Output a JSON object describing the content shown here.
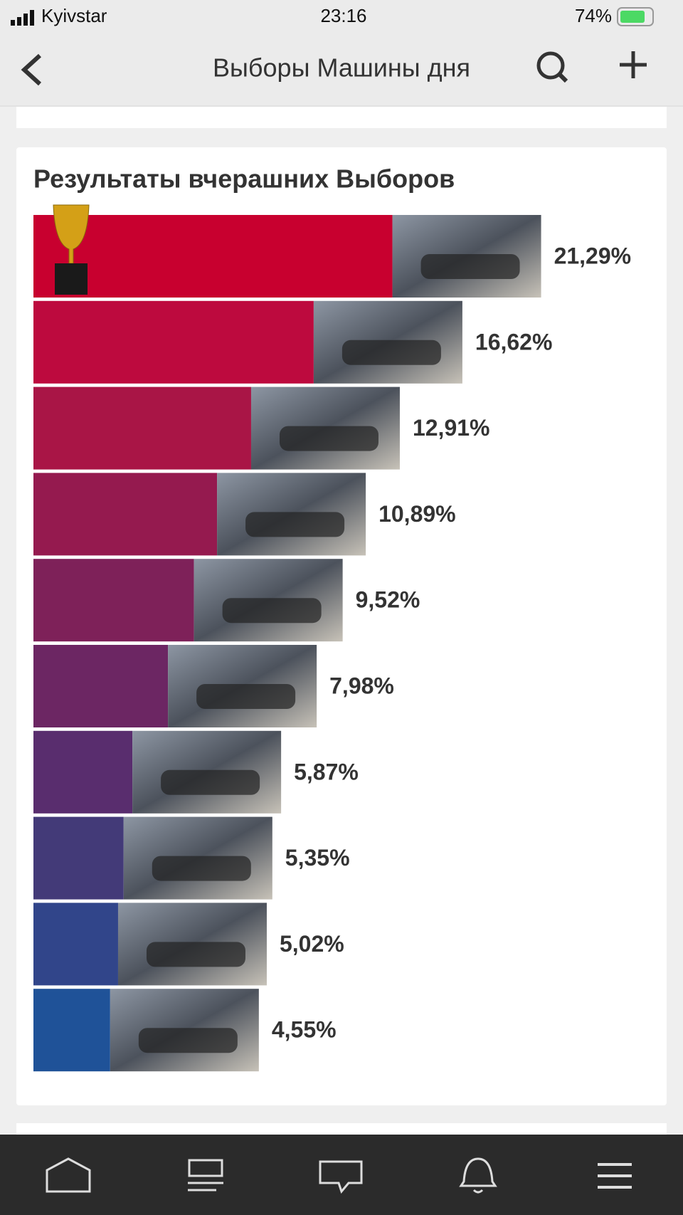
{
  "status_bar": {
    "carrier": "Kyivstar",
    "time": "23:16",
    "battery": "74%"
  },
  "nav": {
    "title": "Выборы Машины дня"
  },
  "chart_data": {
    "type": "bar",
    "orientation": "horizontal",
    "title": "Результаты вчерашних Выборов",
    "values": [
      21.29,
      16.62,
      12.91,
      10.89,
      9.52,
      7.98,
      5.87,
      5.35,
      5.02,
      4.55
    ],
    "value_labels": [
      "21,29%",
      "16,62%",
      "12,91%",
      "10,89%",
      "9,52%",
      "7,98%",
      "5,87%",
      "5,35%",
      "5,02%",
      "4,55%"
    ],
    "colors": [
      "#c8002f",
      "#bd0a3e",
      "#a91546",
      "#951a4f",
      "#7e2159",
      "#6c2663",
      "#592d6e",
      "#433a78",
      "#31458a",
      "#1f5298"
    ]
  }
}
